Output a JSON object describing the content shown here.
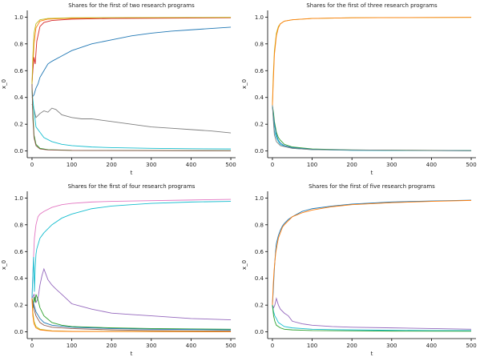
{
  "chart_data": [
    {
      "type": "line",
      "title": "Shares for the first of two research programs",
      "xlabel": "t",
      "ylabel": "x_0",
      "xlim": [
        -12,
        512
      ],
      "ylim": [
        -0.05,
        1.05
      ],
      "xticks": [
        0,
        100,
        200,
        300,
        400,
        500
      ],
      "yticks": [
        0.0,
        0.2,
        0.4,
        0.6,
        0.8,
        1.0
      ],
      "grid": false,
      "series": [
        {
          "color": "#ff7f0e",
          "x": [
            0,
            2,
            5,
            10,
            20,
            40,
            80,
            200,
            500
          ],
          "y": [
            0.5,
            0.62,
            0.8,
            0.92,
            0.97,
            0.985,
            0.99,
            0.995,
            0.997
          ]
        },
        {
          "color": "#d62728",
          "x": [
            0,
            2,
            5,
            8,
            12,
            20,
            30,
            50,
            100,
            200,
            500
          ],
          "y": [
            0.5,
            0.6,
            0.7,
            0.65,
            0.82,
            0.93,
            0.96,
            0.975,
            0.985,
            0.99,
            0.995
          ]
        },
        {
          "color": "#bcbd22",
          "x": [
            0,
            2,
            5,
            10,
            20,
            40,
            100,
            500
          ],
          "y": [
            0.5,
            0.7,
            0.88,
            0.95,
            0.98,
            0.99,
            0.995,
            0.998
          ]
        },
        {
          "color": "#1f77b4",
          "x": [
            0,
            5,
            10,
            15,
            20,
            30,
            40,
            50,
            75,
            100,
            150,
            200,
            250,
            300,
            350,
            400,
            450,
            500
          ],
          "y": [
            0.4,
            0.42,
            0.47,
            0.5,
            0.55,
            0.6,
            0.65,
            0.67,
            0.71,
            0.75,
            0.8,
            0.83,
            0.86,
            0.88,
            0.895,
            0.905,
            0.915,
            0.925
          ]
        },
        {
          "color": "#7f7f7f",
          "x": [
            0,
            5,
            10,
            20,
            30,
            40,
            50,
            60,
            75,
            100,
            125,
            150,
            200,
            250,
            300,
            350,
            400,
            450,
            500
          ],
          "y": [
            0.35,
            0.31,
            0.25,
            0.28,
            0.3,
            0.29,
            0.32,
            0.31,
            0.27,
            0.25,
            0.24,
            0.24,
            0.22,
            0.2,
            0.18,
            0.17,
            0.16,
            0.15,
            0.135
          ]
        },
        {
          "color": "#17becf",
          "x": [
            0,
            5,
            10,
            20,
            30,
            50,
            75,
            100,
            150,
            200,
            300,
            400,
            500
          ],
          "y": [
            0.45,
            0.3,
            0.18,
            0.14,
            0.1,
            0.07,
            0.05,
            0.04,
            0.03,
            0.025,
            0.02,
            0.017,
            0.015
          ]
        },
        {
          "color": "#2ca02c",
          "x": [
            0,
            2,
            5,
            10,
            20,
            40,
            100,
            500
          ],
          "y": [
            0.5,
            0.3,
            0.12,
            0.05,
            0.02,
            0.01,
            0.005,
            0.002
          ]
        },
        {
          "color": "#8c564b",
          "x": [
            0,
            2,
            5,
            10,
            20,
            40,
            100,
            500
          ],
          "y": [
            0.5,
            0.25,
            0.1,
            0.04,
            0.015,
            0.008,
            0.004,
            0.002
          ]
        }
      ]
    },
    {
      "type": "line",
      "title": "Shares for the first of three research programs",
      "xlabel": "t",
      "ylabel": "x_0",
      "xlim": [
        -12,
        512
      ],
      "ylim": [
        -0.05,
        1.05
      ],
      "xticks": [
        0,
        100,
        200,
        300,
        400,
        500
      ],
      "yticks": [
        0.0,
        0.2,
        0.4,
        0.6,
        0.8,
        1.0
      ],
      "grid": false,
      "series": [
        {
          "color": "#bcbd22",
          "x": [
            0,
            2,
            5,
            10,
            15,
            20,
            30,
            50,
            100,
            200,
            500
          ],
          "y": [
            0.34,
            0.55,
            0.75,
            0.88,
            0.93,
            0.95,
            0.97,
            0.98,
            0.99,
            0.995,
            0.998
          ]
        },
        {
          "color": "#ff7f0e",
          "x": [
            0,
            2,
            5,
            10,
            15,
            20,
            30,
            50,
            100,
            200,
            500
          ],
          "y": [
            0.34,
            0.5,
            0.72,
            0.86,
            0.92,
            0.95,
            0.97,
            0.98,
            0.99,
            0.995,
            0.998
          ]
        },
        {
          "color": "#2ca02c",
          "x": [
            0,
            3,
            5,
            10,
            15,
            20,
            30,
            50,
            100,
            200,
            500
          ],
          "y": [
            0.34,
            0.28,
            0.22,
            0.14,
            0.1,
            0.08,
            0.05,
            0.03,
            0.015,
            0.008,
            0.003
          ]
        },
        {
          "color": "#1f77b4",
          "x": [
            0,
            3,
            5,
            10,
            15,
            20,
            30,
            50,
            100,
            200,
            500
          ],
          "y": [
            0.34,
            0.25,
            0.2,
            0.12,
            0.08,
            0.06,
            0.04,
            0.025,
            0.012,
            0.006,
            0.002
          ]
        },
        {
          "color": "#17becf",
          "x": [
            0,
            3,
            5,
            10,
            15,
            20,
            30,
            50,
            100,
            200,
            500
          ],
          "y": [
            0.34,
            0.22,
            0.15,
            0.1,
            0.07,
            0.05,
            0.035,
            0.02,
            0.01,
            0.005,
            0.002
          ]
        },
        {
          "color": "#7f7f7f",
          "x": [
            0,
            3,
            5,
            10,
            20,
            50,
            100,
            500
          ],
          "y": [
            0.34,
            0.2,
            0.12,
            0.07,
            0.04,
            0.02,
            0.01,
            0.002
          ]
        }
      ]
    },
    {
      "type": "line",
      "title": "Shares for the first of four research programs",
      "xlabel": "t",
      "ylabel": "x_0",
      "xlim": [
        -12,
        512
      ],
      "ylim": [
        -0.05,
        1.05
      ],
      "xticks": [
        0,
        100,
        200,
        300,
        400,
        500
      ],
      "yticks": [
        0.0,
        0.2,
        0.4,
        0.6,
        0.8,
        1.0
      ],
      "grid": false,
      "series": [
        {
          "color": "#e377c2",
          "x": [
            0,
            3,
            6,
            10,
            15,
            20,
            30,
            50,
            75,
            100,
            150,
            200,
            300,
            400,
            500
          ],
          "y": [
            0.25,
            0.5,
            0.7,
            0.8,
            0.86,
            0.88,
            0.9,
            0.93,
            0.95,
            0.96,
            0.97,
            0.975,
            0.98,
            0.985,
            0.99
          ]
        },
        {
          "color": "#17becf",
          "x": [
            0,
            2,
            4,
            6,
            8,
            10,
            12,
            15,
            20,
            25,
            30,
            40,
            50,
            75,
            100,
            150,
            200,
            250,
            300,
            400,
            500
          ],
          "y": [
            0.25,
            0.42,
            0.56,
            0.3,
            0.48,
            0.58,
            0.62,
            0.65,
            0.7,
            0.72,
            0.74,
            0.77,
            0.8,
            0.85,
            0.88,
            0.92,
            0.94,
            0.95,
            0.96,
            0.97,
            0.975
          ]
        },
        {
          "color": "#9467bd",
          "x": [
            0,
            5,
            10,
            15,
            20,
            25,
            30,
            35,
            40,
            50,
            60,
            75,
            100,
            150,
            200,
            250,
            300,
            400,
            500
          ],
          "y": [
            0.25,
            0.28,
            0.22,
            0.25,
            0.35,
            0.42,
            0.47,
            0.43,
            0.39,
            0.35,
            0.32,
            0.28,
            0.21,
            0.17,
            0.14,
            0.13,
            0.12,
            0.1,
            0.09
          ]
        },
        {
          "color": "#2ca02c",
          "x": [
            0,
            3,
            5,
            8,
            10,
            15,
            20,
            30,
            50,
            75,
            100,
            150,
            200,
            300,
            400,
            500
          ],
          "y": [
            0.25,
            0.18,
            0.26,
            0.22,
            0.28,
            0.24,
            0.18,
            0.12,
            0.07,
            0.05,
            0.04,
            0.035,
            0.03,
            0.025,
            0.022,
            0.02
          ]
        },
        {
          "color": "#1f77b4",
          "x": [
            0,
            5,
            10,
            20,
            30,
            50,
            100,
            150,
            200,
            300,
            400,
            500
          ],
          "y": [
            0.25,
            0.2,
            0.15,
            0.1,
            0.07,
            0.05,
            0.035,
            0.03,
            0.025,
            0.02,
            0.018,
            0.015
          ]
        },
        {
          "color": "#8c564b",
          "x": [
            0,
            5,
            10,
            20,
            30,
            50,
            100,
            200,
            300,
            400,
            500
          ],
          "y": [
            0.25,
            0.17,
            0.12,
            0.07,
            0.05,
            0.035,
            0.025,
            0.015,
            0.01,
            0.008,
            0.006
          ]
        },
        {
          "color": "#bcbd22",
          "x": [
            0,
            2,
            5,
            10,
            20,
            50,
            100,
            500
          ],
          "y": [
            0.25,
            0.15,
            0.08,
            0.04,
            0.02,
            0.008,
            0.004,
            0.002
          ]
        },
        {
          "color": "#ff7f0e",
          "x": [
            0,
            2,
            5,
            10,
            20,
            50,
            100,
            500
          ],
          "y": [
            0.25,
            0.12,
            0.06,
            0.03,
            0.015,
            0.006,
            0.003,
            0.001
          ]
        }
      ]
    },
    {
      "type": "line",
      "title": "Shares for the first of five research programs",
      "xlabel": "t",
      "ylabel": "x_0",
      "xlim": [
        -12,
        512
      ],
      "ylim": [
        -0.05,
        1.05
      ],
      "xticks": [
        0,
        100,
        200,
        300,
        400,
        500
      ],
      "yticks": [
        0.0,
        0.2,
        0.4,
        0.6,
        0.8,
        1.0
      ],
      "grid": false,
      "series": [
        {
          "color": "#1f77b4",
          "x": [
            0,
            2,
            4,
            6,
            8,
            10,
            15,
            20,
            25,
            30,
            40,
            50,
            75,
            100,
            150,
            200,
            300,
            400,
            500
          ],
          "y": [
            0.2,
            0.3,
            0.42,
            0.52,
            0.6,
            0.66,
            0.72,
            0.76,
            0.79,
            0.81,
            0.84,
            0.86,
            0.9,
            0.92,
            0.94,
            0.955,
            0.97,
            0.978,
            0.984
          ]
        },
        {
          "color": "#ff7f0e",
          "x": [
            0,
            2,
            4,
            6,
            8,
            10,
            15,
            20,
            25,
            30,
            40,
            50,
            75,
            100,
            150,
            200,
            300,
            400,
            500
          ],
          "y": [
            0.2,
            0.35,
            0.45,
            0.52,
            0.58,
            0.62,
            0.7,
            0.74,
            0.78,
            0.8,
            0.83,
            0.86,
            0.89,
            0.91,
            0.935,
            0.95,
            0.965,
            0.975,
            0.982
          ]
        },
        {
          "color": "#9467bd",
          "x": [
            0,
            3,
            6,
            10,
            15,
            20,
            30,
            40,
            50,
            75,
            100,
            150,
            200,
            300,
            400,
            500
          ],
          "y": [
            0.2,
            0.18,
            0.2,
            0.25,
            0.2,
            0.17,
            0.14,
            0.12,
            0.08,
            0.06,
            0.05,
            0.04,
            0.035,
            0.03,
            0.025,
            0.02
          ]
        },
        {
          "color": "#17becf",
          "x": [
            0,
            3,
            6,
            10,
            15,
            20,
            30,
            50,
            75,
            100,
            150,
            200,
            300,
            400,
            500
          ],
          "y": [
            0.2,
            0.15,
            0.12,
            0.1,
            0.07,
            0.06,
            0.04,
            0.03,
            0.025,
            0.02,
            0.017,
            0.015,
            0.012,
            0.01,
            0.01
          ]
        },
        {
          "color": "#2ca02c",
          "x": [
            0,
            3,
            6,
            10,
            20,
            30,
            50,
            100,
            200,
            300,
            500
          ],
          "y": [
            0.2,
            0.12,
            0.08,
            0.05,
            0.03,
            0.02,
            0.015,
            0.01,
            0.008,
            0.006,
            0.005
          ]
        }
      ]
    }
  ]
}
